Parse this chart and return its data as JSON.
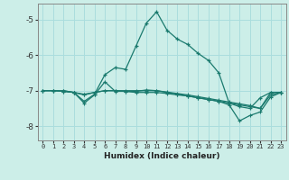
{
  "xlabel": "Humidex (Indice chaleur)",
  "bg_color": "#cceee8",
  "grid_color": "#aadddd",
  "line_color": "#1a7a6e",
  "xlim": [
    -0.5,
    23.5
  ],
  "ylim": [
    -8.4,
    -4.55
  ],
  "yticks": [
    -8,
    -7,
    -6,
    -5
  ],
  "xticks": [
    0,
    1,
    2,
    3,
    4,
    5,
    6,
    7,
    8,
    9,
    10,
    11,
    12,
    13,
    14,
    15,
    16,
    17,
    18,
    19,
    20,
    21,
    22,
    23
  ],
  "series1_x": [
    0,
    1,
    2,
    3,
    4,
    5,
    6,
    7,
    8,
    9,
    10,
    11,
    12,
    13,
    14,
    15,
    16,
    17,
    18,
    19,
    20,
    21,
    22,
    23
  ],
  "series1_y": [
    -7.0,
    -7.0,
    -7.0,
    -7.05,
    -7.3,
    -7.1,
    -6.55,
    -6.35,
    -6.4,
    -5.75,
    -5.1,
    -4.78,
    -5.3,
    -5.55,
    -5.7,
    -5.95,
    -6.15,
    -6.5,
    -7.35,
    -7.45,
    -7.5,
    -7.2,
    -7.05,
    -7.05
  ],
  "series2_x": [
    0,
    1,
    2,
    3,
    4,
    5,
    6,
    7,
    8,
    9,
    10,
    11,
    12,
    13,
    14,
    15,
    16,
    17,
    18,
    19,
    20,
    21,
    22,
    23
  ],
  "series2_y": [
    -7.0,
    -7.0,
    -7.02,
    -7.05,
    -7.1,
    -7.05,
    -7.0,
    -7.0,
    -7.0,
    -7.0,
    -7.0,
    -7.0,
    -7.05,
    -7.1,
    -7.15,
    -7.2,
    -7.25,
    -7.3,
    -7.35,
    -7.4,
    -7.45,
    -7.5,
    -7.05,
    -7.05
  ],
  "series3_x": [
    0,
    1,
    2,
    3,
    4,
    5,
    6,
    7,
    8,
    9,
    10,
    11,
    12,
    13,
    14,
    15,
    16,
    17,
    18,
    19,
    20,
    21,
    22,
    23
  ],
  "series3_y": [
    -7.0,
    -7.0,
    -7.02,
    -7.05,
    -7.12,
    -7.05,
    -7.0,
    -7.0,
    -7.02,
    -7.05,
    -7.05,
    -7.05,
    -7.08,
    -7.12,
    -7.15,
    -7.2,
    -7.25,
    -7.3,
    -7.4,
    -7.85,
    -7.7,
    -7.6,
    -7.18,
    -7.05
  ],
  "series4_x": [
    2,
    3,
    4,
    5,
    6,
    7,
    8,
    9,
    10,
    11,
    12,
    13,
    14,
    15,
    16,
    17,
    18,
    19,
    20,
    21,
    22,
    23
  ],
  "series4_y": [
    -7.0,
    -7.05,
    -7.35,
    -7.12,
    -6.75,
    -7.02,
    -7.02,
    -7.02,
    -6.98,
    -7.0,
    -7.04,
    -7.08,
    -7.12,
    -7.17,
    -7.22,
    -7.27,
    -7.32,
    -7.37,
    -7.42,
    -7.5,
    -7.12,
    -7.05
  ]
}
